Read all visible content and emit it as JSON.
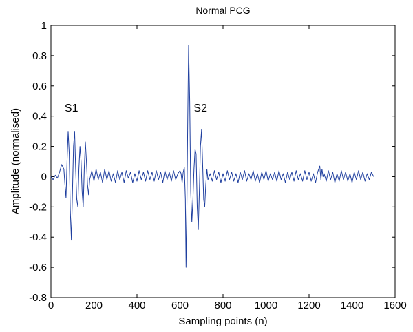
{
  "chart_data": {
    "type": "line",
    "title": "Normal PCG",
    "xlabel": "Sampling points (n)",
    "ylabel": "Amplitude (normalised)",
    "xlim": [
      0,
      1600
    ],
    "ylim": [
      -0.8,
      1
    ],
    "xticks": [
      0,
      200,
      400,
      600,
      800,
      1000,
      1200,
      1400,
      1600
    ],
    "yticks": [
      -0.8,
      -0.6,
      -0.4,
      -0.2,
      0,
      0.2,
      0.4,
      0.6,
      0.8,
      1
    ],
    "line_color": "#1f3f9f",
    "grid": false,
    "annotations": [
      {
        "text": "S1",
        "x": 95,
        "y": 0.43
      },
      {
        "text": "S2",
        "x": 695,
        "y": 0.43
      }
    ],
    "series": [
      {
        "x": [
          0,
          10,
          20,
          30,
          40,
          50,
          60,
          65,
          70,
          75,
          80,
          85,
          90,
          95,
          100,
          105,
          110,
          115,
          120,
          125,
          130,
          135,
          140,
          145,
          150,
          155,
          160,
          165,
          170,
          175,
          180,
          190,
          200,
          210,
          220,
          230,
          240,
          250,
          260,
          270,
          280,
          290,
          300,
          310,
          320,
          330,
          340,
          350,
          360,
          370,
          380,
          390,
          400,
          410,
          420,
          430,
          440,
          450,
          460,
          470,
          480,
          490,
          500,
          510,
          520,
          530,
          540,
          550,
          560,
          570,
          580,
          590,
          600,
          605,
          610,
          615,
          620,
          625,
          628,
          632,
          636,
          640,
          645,
          650,
          655,
          660,
          665,
          670,
          675,
          680,
          685,
          690,
          695,
          700,
          705,
          710,
          715,
          720,
          725,
          730,
          740,
          750,
          760,
          770,
          780,
          790,
          800,
          810,
          820,
          830,
          840,
          850,
          860,
          870,
          880,
          890,
          900,
          910,
          920,
          930,
          940,
          950,
          960,
          970,
          980,
          990,
          1000,
          1010,
          1020,
          1030,
          1040,
          1050,
          1060,
          1070,
          1080,
          1090,
          1100,
          1110,
          1120,
          1130,
          1140,
          1150,
          1160,
          1170,
          1180,
          1190,
          1200,
          1210,
          1220,
          1230,
          1240,
          1250,
          1255,
          1260,
          1265,
          1270,
          1280,
          1290,
          1300,
          1310,
          1320,
          1330,
          1340,
          1350,
          1360,
          1370,
          1380,
          1390,
          1400,
          1410,
          1420,
          1430,
          1440,
          1450,
          1460,
          1470,
          1480,
          1490,
          1500
        ],
        "y": [
          0.0,
          -0.02,
          0.01,
          -0.01,
          0.03,
          0.08,
          0.05,
          -0.05,
          -0.14,
          0.1,
          0.3,
          0.15,
          -0.22,
          -0.42,
          -0.1,
          0.2,
          0.3,
          0.05,
          -0.15,
          -0.2,
          0.05,
          0.2,
          0.1,
          -0.1,
          -0.2,
          0.05,
          0.23,
          0.1,
          -0.05,
          -0.12,
          -0.02,
          0.04,
          -0.03,
          0.05,
          -0.02,
          0.03,
          -0.04,
          0.05,
          -0.02,
          0.04,
          -0.03,
          0.02,
          -0.04,
          0.04,
          -0.02,
          0.03,
          -0.04,
          0.04,
          -0.01,
          0.03,
          -0.04,
          0.02,
          -0.03,
          0.04,
          -0.02,
          0.03,
          -0.03,
          0.04,
          -0.02,
          0.03,
          -0.03,
          0.04,
          -0.02,
          0.03,
          -0.04,
          0.04,
          -0.02,
          0.03,
          -0.03,
          0.04,
          -0.02,
          0.02,
          0.04,
          0.02,
          -0.04,
          0.03,
          0.06,
          -0.15,
          -0.6,
          -0.2,
          0.4,
          0.87,
          0.5,
          -0.1,
          -0.3,
          -0.15,
          0.05,
          0.18,
          0.15,
          -0.2,
          -0.35,
          -0.1,
          0.2,
          0.31,
          0.1,
          -0.15,
          -0.2,
          -0.05,
          0.05,
          -0.02,
          0.02,
          -0.03,
          0.04,
          -0.02,
          0.03,
          -0.04,
          0.02,
          -0.03,
          0.04,
          -0.02,
          0.03,
          -0.03,
          0.02,
          -0.04,
          0.03,
          -0.02,
          0.04,
          -0.03,
          0.02,
          -0.02,
          0.04,
          -0.03,
          0.02,
          -0.04,
          0.03,
          -0.02,
          0.04,
          -0.03,
          0.02,
          -0.02,
          0.03,
          -0.03,
          0.04,
          -0.02,
          0.02,
          -0.04,
          0.03,
          -0.02,
          0.03,
          -0.03,
          0.04,
          -0.02,
          0.02,
          -0.03,
          0.04,
          -0.02,
          0.03,
          -0.03,
          0.02,
          -0.04,
          0.03,
          0.07,
          -0.02,
          0.05,
          0.0,
          0.02,
          -0.03,
          0.04,
          -0.02,
          0.03,
          -0.04,
          0.02,
          -0.03,
          0.04,
          -0.02,
          0.03,
          -0.03,
          0.02,
          -0.04,
          0.03,
          -0.02,
          0.04,
          -0.02,
          0.03,
          -0.03,
          0.02,
          -0.02,
          0.03,
          0.0
        ]
      }
    ]
  }
}
